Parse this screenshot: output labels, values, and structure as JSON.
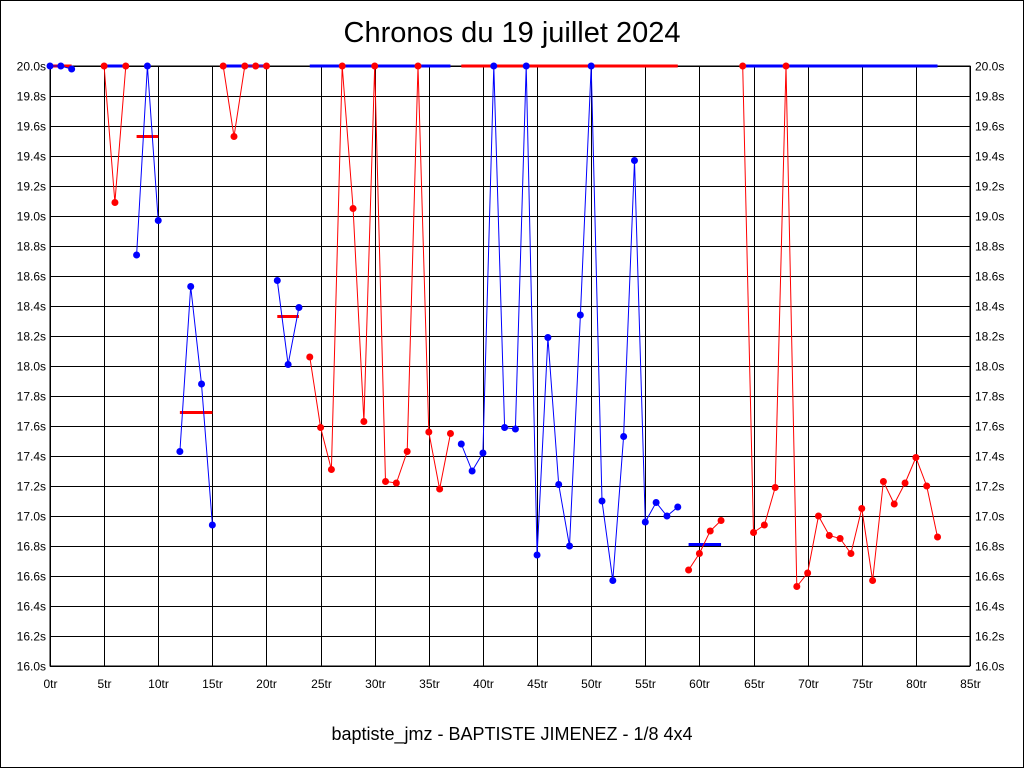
{
  "chart_data": {
    "type": "line",
    "title": "Chronos du 19 juillet 2024",
    "footer": "baptiste_jmz - BAPTISTE JIMENEZ - 1/8 4x4",
    "xlabel": "",
    "ylabel": "",
    "xlim": [
      0,
      85
    ],
    "ylim": [
      16.0,
      20.0
    ],
    "grid": true,
    "x_ticks": [
      "0tr",
      "5tr",
      "10tr",
      "15tr",
      "20tr",
      "25tr",
      "30tr",
      "35tr",
      "40tr",
      "45tr",
      "50tr",
      "55tr",
      "60tr",
      "65tr",
      "70tr",
      "75tr",
      "80tr",
      "85tr"
    ],
    "y_ticks": [
      "16.0s",
      "16.2s",
      "16.4s",
      "16.6s",
      "16.8s",
      "17.0s",
      "17.2s",
      "17.4s",
      "17.6s",
      "17.8s",
      "18.0s",
      "18.2s",
      "18.4s",
      "18.6s",
      "18.8s",
      "19.0s",
      "19.2s",
      "19.4s",
      "19.6s",
      "19.8s",
      "20.0s"
    ],
    "colors": {
      "red": "#ff0000",
      "blue": "#0000ff",
      "grid": "#000000"
    },
    "segments": [
      {
        "color": "blue",
        "start_lap": 0,
        "values": [
          20.0,
          20.0,
          19.98
        ],
        "average": 20.0,
        "average_color": "red"
      },
      {
        "color": "red",
        "start_lap": 5,
        "values": [
          20.0,
          19.09,
          20.0
        ],
        "average": 20.0,
        "average_color": "blue"
      },
      {
        "color": "blue",
        "start_lap": 8,
        "values": [
          18.74,
          20.0,
          18.97
        ],
        "average": 19.53,
        "average_color": "red"
      },
      {
        "color": "blue",
        "start_lap": 12,
        "values": [
          17.43,
          18.53,
          17.88,
          16.94
        ],
        "average": 17.69,
        "average_color": "red"
      },
      {
        "color": "red",
        "start_lap": 16,
        "values": [
          20.0,
          19.53,
          20.0,
          20.0,
          20.0
        ],
        "average": 20.0,
        "average_color": "blue"
      },
      {
        "color": "blue",
        "start_lap": 21,
        "values": [
          18.57,
          18.01,
          18.39
        ],
        "average": 18.33,
        "average_color": "red"
      },
      {
        "color": "red",
        "start_lap": 24,
        "values": [
          18.06,
          17.59,
          17.31,
          20.0,
          19.05,
          17.63,
          20.0,
          17.23,
          17.22,
          17.43,
          20.0,
          17.56,
          17.18,
          17.55
        ],
        "average": 20.0,
        "average_color": "blue"
      },
      {
        "color": "blue",
        "start_lap": 38,
        "values": [
          17.48,
          17.3,
          17.42,
          20.0,
          17.59,
          17.58,
          20.0,
          16.74,
          18.19,
          17.21,
          16.8,
          18.34,
          20.0,
          17.1,
          16.57,
          17.53,
          19.37,
          16.96,
          17.09,
          17.0,
          17.06
        ],
        "average": 20.0,
        "average_color": "red"
      },
      {
        "color": "red",
        "start_lap": 59,
        "values": [
          16.64,
          16.75,
          16.9,
          16.97
        ],
        "average": 16.81,
        "average_color": "blue"
      },
      {
        "color": "red",
        "start_lap": 64,
        "values": [
          20.0,
          16.89,
          16.94,
          17.19,
          20.0,
          16.53,
          16.62,
          17.0,
          16.87,
          16.85,
          16.75,
          17.05,
          16.57,
          17.23,
          17.08,
          17.22,
          17.39,
          17.2,
          16.86
        ],
        "average": 20.0,
        "average_color": "blue"
      }
    ]
  }
}
